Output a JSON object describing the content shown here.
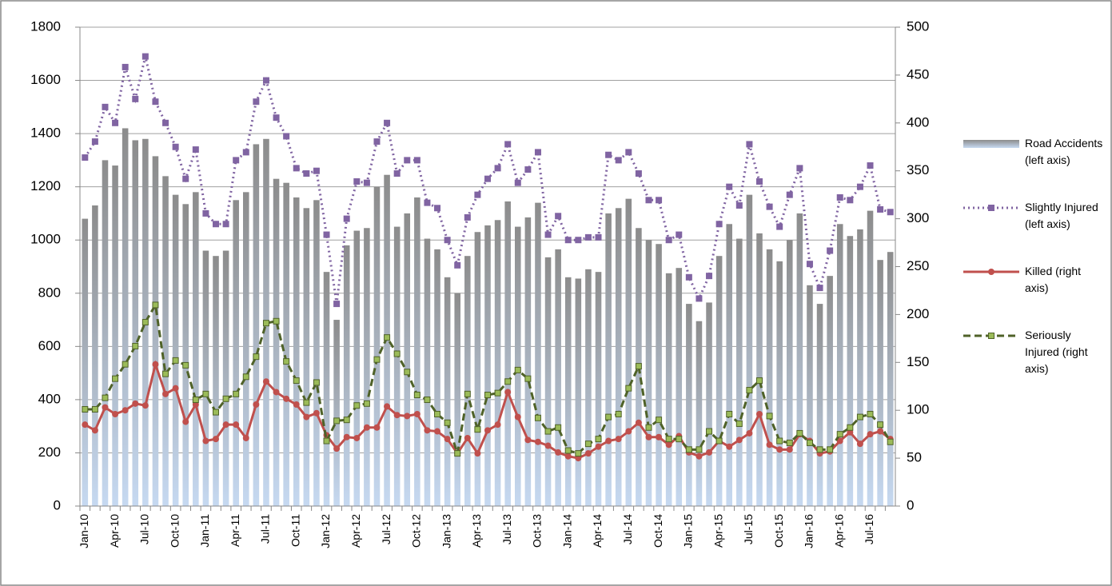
{
  "chart_data": {
    "type": "combo",
    "categories": [
      "Jan-10",
      null,
      null,
      "Apr-10",
      null,
      null,
      "Jul-10",
      null,
      null,
      "Oct-10",
      null,
      null,
      "Jan-11",
      null,
      null,
      "Apr-11",
      null,
      null,
      "Jul-11",
      null,
      null,
      "Oct-11",
      null,
      null,
      "Jan-12",
      null,
      null,
      "Apr-12",
      null,
      null,
      "Jul-12",
      null,
      null,
      "Oct-12",
      null,
      null,
      "Jan-13",
      null,
      null,
      "Apr-13",
      null,
      null,
      "Jul-13",
      null,
      null,
      "Oct-13",
      null,
      null,
      "Jan-14",
      null,
      null,
      "Apr-14",
      null,
      null,
      "Jul-14",
      null,
      null,
      "Oct-14",
      null,
      null,
      "Jan-15",
      null,
      null,
      "Apr-15",
      null,
      null,
      "Jul-15",
      null,
      null,
      "Oct-15",
      null,
      null,
      "Jan-16",
      null,
      null,
      "Apr-16",
      null,
      null,
      "Jul-16",
      null,
      null
    ],
    "ylim": [
      0,
      1800
    ],
    "yticks": [
      0,
      200,
      400,
      600,
      800,
      1000,
      1200,
      1400,
      1600,
      1800
    ],
    "y2lim": [
      0,
      500
    ],
    "y2ticks": [
      0,
      50,
      100,
      150,
      200,
      250,
      300,
      350,
      400,
      450,
      500
    ],
    "grid": true,
    "legend": "right",
    "series": [
      {
        "name": "Road Accidents (left axis)",
        "kind": "bar",
        "color": "#8c8c8c",
        "axis": "y",
        "values": [
          1080,
          1130,
          1300,
          1280,
          1420,
          1375,
          1380,
          1315,
          1240,
          1170,
          1135,
          1180,
          960,
          940,
          960,
          1150,
          1180,
          1360,
          1380,
          1230,
          1215,
          1160,
          1120,
          1150,
          880,
          700,
          980,
          1035,
          1045,
          1200,
          1245,
          1050,
          1100,
          1160,
          1005,
          965,
          860,
          800,
          940,
          1030,
          1055,
          1075,
          1145,
          1050,
          1085,
          1140,
          935,
          965,
          860,
          855,
          890,
          880,
          1100,
          1120,
          1155,
          1045,
          1000,
          985,
          875,
          895,
          760,
          695,
          765,
          940,
          1060,
          1005,
          1170,
          1025,
          965,
          920,
          1000,
          1100,
          830,
          760,
          865,
          1060,
          1015,
          1040,
          1110,
          925,
          955
        ]
      },
      {
        "name": "Slightly Injured (left axis)",
        "kind": "line",
        "color": "#8064a2",
        "dash": "dotted",
        "marker": "square",
        "axis": "y",
        "values": [
          1310,
          1370,
          1500,
          1440,
          1650,
          1530,
          1690,
          1520,
          1440,
          1350,
          1230,
          1340,
          1100,
          1060,
          1060,
          1300,
          1330,
          1520,
          1600,
          1460,
          1390,
          1270,
          1250,
          1260,
          1020,
          760,
          1080,
          1220,
          1215,
          1370,
          1440,
          1250,
          1300,
          1300,
          1140,
          1120,
          1000,
          905,
          1085,
          1170,
          1230,
          1270,
          1360,
          1215,
          1265,
          1330,
          1020,
          1090,
          1000,
          1000,
          1010,
          1010,
          1320,
          1300,
          1330,
          1250,
          1150,
          1150,
          1000,
          1020,
          860,
          780,
          865,
          1060,
          1200,
          1130,
          1360,
          1220,
          1125,
          1050,
          1170,
          1270,
          910,
          820,
          960,
          1160,
          1150,
          1200,
          1280,
          1115,
          1105
        ]
      },
      {
        "name": "Killed (right axis)",
        "kind": "line",
        "color": "#c0504d",
        "dash": "solid",
        "marker": "circle",
        "axis": "y2",
        "values": [
          85,
          79,
          103,
          96,
          100,
          107,
          105,
          148,
          117,
          123,
          88,
          106,
          68,
          70,
          85,
          85,
          71,
          106,
          130,
          119,
          112,
          106,
          93,
          97,
          74,
          60,
          72,
          71,
          82,
          82,
          104,
          95,
          94,
          96,
          79,
          78,
          70,
          55,
          71,
          55,
          79,
          85,
          119,
          93,
          69,
          67,
          63,
          56,
          52,
          50,
          55,
          62,
          68,
          70,
          78,
          87,
          72,
          72,
          64,
          73,
          56,
          52,
          56,
          68,
          62,
          69,
          76,
          96,
          64,
          59,
          59,
          75,
          68,
          55,
          57,
          68,
          77,
          65,
          75,
          78,
          70
        ]
      },
      {
        "name": "Seriously Injured (right axis)",
        "kind": "line",
        "color": "#4f6228",
        "marker_color": "#9bbb59",
        "dash": "dashed",
        "marker": "square",
        "axis": "y2",
        "values": [
          101,
          101,
          113,
          133,
          148,
          167,
          192,
          210,
          138,
          152,
          147,
          111,
          117,
          98,
          112,
          117,
          135,
          156,
          191,
          193,
          151,
          131,
          108,
          129,
          68,
          89,
          90,
          105,
          107,
          153,
          176,
          159,
          140,
          116,
          111,
          96,
          87,
          55,
          117,
          80,
          116,
          118,
          130,
          142,
          133,
          92,
          78,
          82,
          58,
          55,
          65,
          70,
          93,
          96,
          123,
          146,
          82,
          90,
          70,
          70,
          59,
          59,
          78,
          68,
          96,
          86,
          121,
          131,
          94,
          68,
          66,
          76,
          66,
          59,
          59,
          75,
          82,
          93,
          96,
          85,
          67
        ]
      }
    ]
  }
}
